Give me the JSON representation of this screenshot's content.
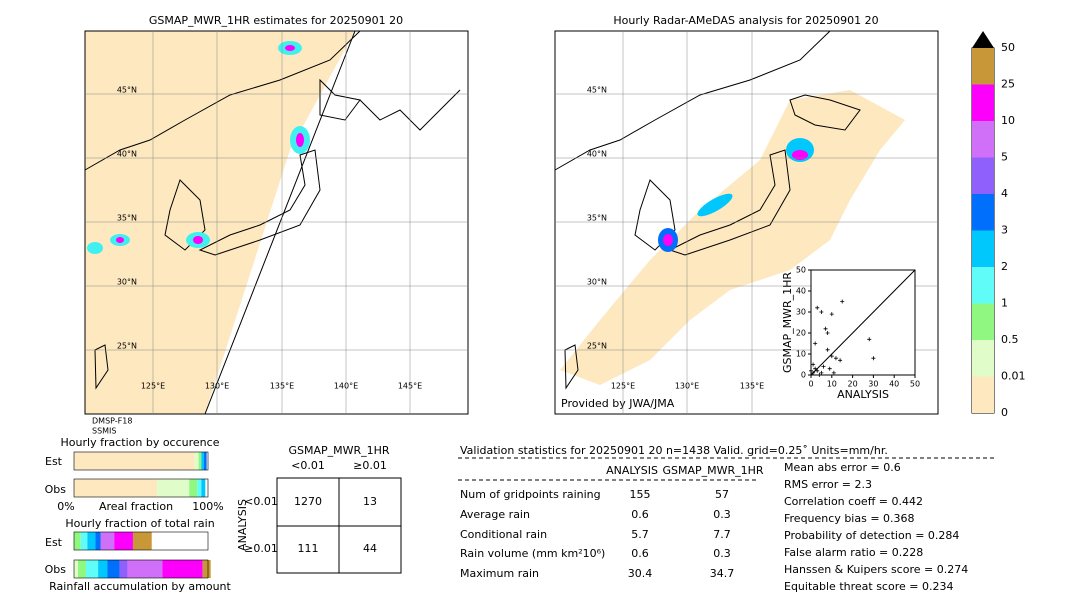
{
  "left_map": {
    "title": "GSMAP_MWR_1HR estimates for 20250901 20",
    "lat_labels": [
      "45°N",
      "40°N",
      "35°N",
      "30°N",
      "25°N"
    ],
    "lon_labels": [
      "125°E",
      "130°E",
      "135°E",
      "140°E",
      "145°E"
    ],
    "satellite": [
      "DMSP-F18",
      "SSMIS"
    ]
  },
  "right_map": {
    "title": "Hourly Radar-AMeDAS analysis for 20250901 20",
    "lat_labels": [
      "45°N",
      "40°N",
      "35°N",
      "30°N",
      "25°N"
    ],
    "lon_labels": [
      "125°E",
      "130°E",
      "135°E"
    ],
    "credit": "Provided by JWA/JMA"
  },
  "scatter": {
    "type": "scatter",
    "x_label": "ANALYSIS",
    "y_label": "GSMAP_MWR_1HR",
    "xlim": [
      0,
      50
    ],
    "ylim": [
      0,
      50
    ],
    "xticks": [
      0,
      10,
      20,
      30,
      40,
      50
    ],
    "yticks": [
      0,
      10,
      20,
      30,
      40,
      50
    ],
    "x": [
      2,
      3,
      5,
      7,
      8,
      10,
      12,
      15,
      8,
      10,
      14,
      28,
      30,
      1,
      2,
      3,
      5,
      6,
      4,
      1,
      0,
      9,
      11
    ],
    "y": [
      15,
      32,
      30,
      22,
      20,
      29,
      8,
      35,
      12,
      9,
      7,
      17,
      8,
      5,
      3,
      2,
      1,
      4,
      0,
      1,
      2,
      3,
      1
    ]
  },
  "colorbar": {
    "labels": [
      "0",
      "0.01",
      "0.5",
      "1",
      "2",
      "3",
      "4",
      "5",
      "10",
      "25",
      "50"
    ],
    "colors": [
      "#fde8c0",
      "#e0fcc8",
      "#90f880",
      "#60fcf8",
      "#00c8fc",
      "#0070fc",
      "#9060fc",
      "#d070f8",
      "#fc00fc",
      "#c89838"
    ],
    "extend_color": "#000000"
  },
  "occurrence": {
    "title": "Hourly fraction by occurence",
    "rows": [
      "Est",
      "Obs"
    ],
    "axis_labels": [
      "0%",
      "Areal fraction",
      "100%"
    ],
    "est": [
      {
        "color": "#fde8c0",
        "value": 0.9
      },
      {
        "color": "#e0fcc8",
        "value": 0.03
      },
      {
        "color": "#90f880",
        "value": 0.02
      },
      {
        "color": "#00c8fc",
        "value": 0.02
      },
      {
        "color": "#0070fc",
        "value": 0.02
      }
    ],
    "obs": [
      {
        "color": "#fde8c0",
        "value": 0.62
      },
      {
        "color": "#e0fcc8",
        "value": 0.24
      },
      {
        "color": "#90f880",
        "value": 0.06
      },
      {
        "color": "#60fcf8",
        "value": 0.03
      },
      {
        "color": "#00c8fc",
        "value": 0.03
      }
    ]
  },
  "total_rain": {
    "title": "Hourly fraction of total rain",
    "rows": [
      "Est",
      "Obs"
    ],
    "footer": "Rainfall accumulation by amount",
    "est": [
      {
        "color": "#90f880",
        "value": 0.05
      },
      {
        "color": "#60fcf8",
        "value": 0.05
      },
      {
        "color": "#00c8fc",
        "value": 0.06
      },
      {
        "color": "#0070fc",
        "value": 0.04
      },
      {
        "color": "#d070f8",
        "value": 0.1
      },
      {
        "color": "#fc00fc",
        "value": 0.14
      },
      {
        "color": "#c89838",
        "value": 0.14
      }
    ],
    "obs": [
      {
        "color": "#e0fcc8",
        "value": 0.03
      },
      {
        "color": "#90f880",
        "value": 0.06
      },
      {
        "color": "#60fcf8",
        "value": 0.09
      },
      {
        "color": "#00c8fc",
        "value": 0.07
      },
      {
        "color": "#0070fc",
        "value": 0.09
      },
      {
        "color": "#9060fc",
        "value": 0.06
      },
      {
        "color": "#d070f8",
        "value": 0.26
      },
      {
        "color": "#fc00fc",
        "value": 0.3
      },
      {
        "color": "#c89838",
        "value": 0.06
      }
    ]
  },
  "contingency": {
    "title": "GSMAP_MWR_1HR",
    "columns": [
      "<0.01",
      "≥0.01"
    ],
    "axis_label": "ANALYSIS",
    "row_labels": [
      "<0.01",
      "≥0.01"
    ],
    "cells": [
      [
        1270,
        13
      ],
      [
        111,
        44
      ]
    ]
  },
  "validation": {
    "header": "Validation statistics for 20250901 20  n=1438 Valid. grid=0.25˚ Units=mm/hr.",
    "columns": [
      "ANALYSIS",
      "GSMAP_MWR_1HR"
    ],
    "rows": [
      [
        "Num of gridpoints raining",
        "155",
        "57"
      ],
      [
        "Average rain",
        "0.6",
        "0.3"
      ],
      [
        "Conditional rain",
        "5.7",
        "7.7"
      ],
      [
        "Rain volume (mm km²10⁶)",
        "0.6",
        "0.3"
      ],
      [
        "Maximum rain",
        "30.4",
        "34.7"
      ]
    ],
    "scores": [
      "Mean abs error =    0.6",
      "RMS error =    2.3",
      "Correlation coeff =  0.442",
      "Frequency bias =  0.368",
      "Probability of detection =  0.284",
      "False alarm ratio =  0.228",
      "Hanssen & Kuipers score =  0.274",
      "Equitable threat score =  0.234"
    ]
  }
}
